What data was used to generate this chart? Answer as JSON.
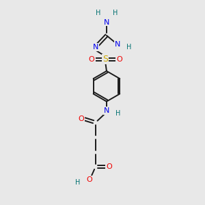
{
  "bg_color": "#e8e8e8",
  "bond_color": "#1a1a1a",
  "colors": {
    "N": "#0000ee",
    "O": "#ee0000",
    "S": "#ccaa00",
    "H": "#007070",
    "C": "#1a1a1a"
  }
}
